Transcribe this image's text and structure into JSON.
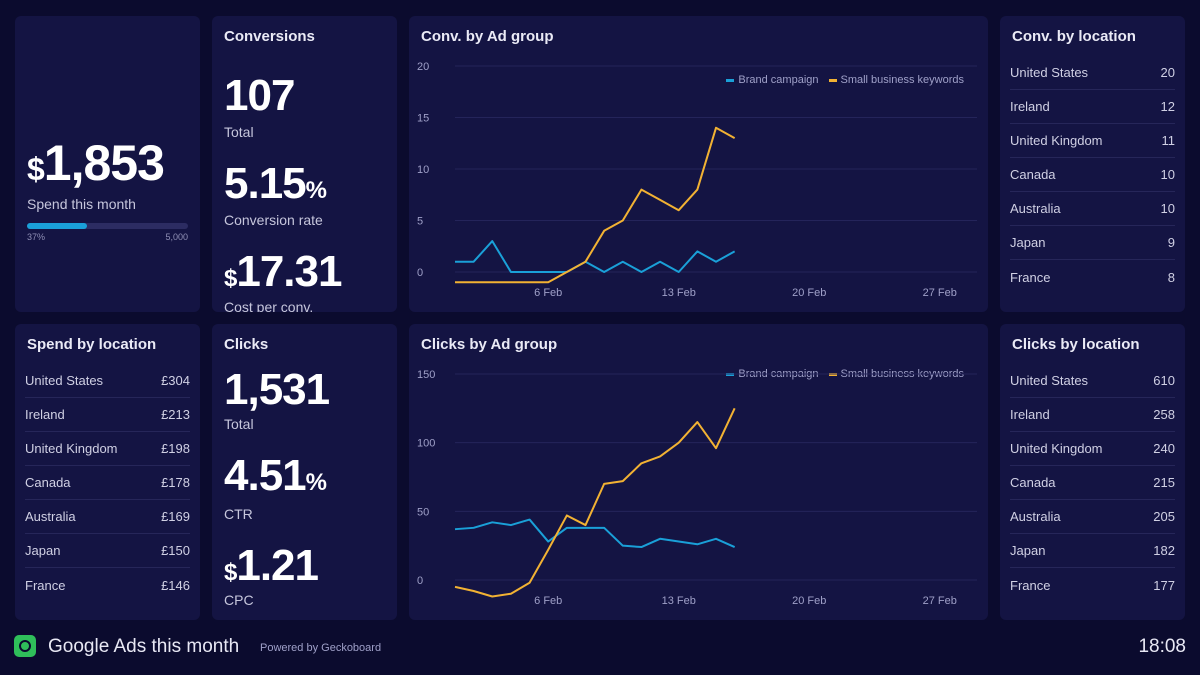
{
  "spend": {
    "currency": "$",
    "value": "1,853",
    "label": "Spend this month",
    "progress_fraction": 0.37,
    "progress_left": "37%",
    "progress_right": "5,000"
  },
  "conversions": {
    "title": "Conversions",
    "total_value": "107",
    "total_label": "Total",
    "rate_value": "5.15",
    "rate_unit": "%",
    "rate_label": "Conversion rate",
    "cpc_currency": "$",
    "cpc_value": "17.31",
    "cpc_label": "Cost per conv."
  },
  "clicks": {
    "title": "Clicks",
    "total_value": "1,531",
    "total_label": "Total",
    "ctr_value": "4.51",
    "ctr_unit": "%",
    "ctr_label": "CTR",
    "cpc_currency": "$",
    "cpc_value": "1.21",
    "cpc_label": "CPC"
  },
  "conv_by_location": {
    "title": "Conv. by location",
    "rows": [
      {
        "name": "United States",
        "value": "20"
      },
      {
        "name": "Ireland",
        "value": "12"
      },
      {
        "name": "United Kingdom",
        "value": "11"
      },
      {
        "name": "Canada",
        "value": "10"
      },
      {
        "name": "Australia",
        "value": "10"
      },
      {
        "name": "Japan",
        "value": "9"
      },
      {
        "name": "France",
        "value": "8"
      }
    ]
  },
  "spend_by_location": {
    "title": "Spend by location",
    "rows": [
      {
        "name": "United States",
        "value": "£304"
      },
      {
        "name": "Ireland",
        "value": "£213"
      },
      {
        "name": "United Kingdom",
        "value": "£198"
      },
      {
        "name": "Canada",
        "value": "£178"
      },
      {
        "name": "Australia",
        "value": "£169"
      },
      {
        "name": "Japan",
        "value": "£150"
      },
      {
        "name": "France",
        "value": "£146"
      }
    ]
  },
  "clicks_by_location": {
    "title": "Clicks by location",
    "rows": [
      {
        "name": "United States",
        "value": "610"
      },
      {
        "name": "Ireland",
        "value": "258"
      },
      {
        "name": "United Kingdom",
        "value": "240"
      },
      {
        "name": "Canada",
        "value": "215"
      },
      {
        "name": "Australia",
        "value": "205"
      },
      {
        "name": "Japan",
        "value": "182"
      },
      {
        "name": "France",
        "value": "177"
      }
    ]
  },
  "colors": {
    "brand": "#1aa0d8",
    "small_business": "#f2b233",
    "background": "#0b0b2e",
    "panel": "#141443",
    "logo": "#2fbf5a"
  },
  "chart_data": [
    {
      "type": "line",
      "title": "Conv. by Ad group",
      "x_ticks": [
        "6 Feb",
        "13 Feb",
        "20 Feb",
        "27 Feb"
      ],
      "x_range": [
        1,
        29
      ],
      "ylim": [
        0,
        20
      ],
      "y_ticks": [
        0,
        5,
        10,
        15,
        20
      ],
      "grid": true,
      "legend_position": "top-right",
      "series": [
        {
          "name": "Brand campaign",
          "color": "#1aa0d8",
          "x": [
            1,
            2,
            3,
            4,
            5,
            6,
            7,
            8,
            9,
            10,
            11,
            12,
            13,
            14,
            15,
            16
          ],
          "values": [
            1,
            1,
            3,
            0,
            0,
            0,
            0,
            1,
            0,
            1,
            0,
            1,
            0,
            2,
            1,
            2
          ]
        },
        {
          "name": "Small business keywords",
          "color": "#f2b233",
          "x": [
            1,
            2,
            3,
            4,
            5,
            6,
            7,
            8,
            9,
            10,
            11,
            12,
            13,
            14,
            15,
            16
          ],
          "values": [
            -1,
            -1,
            -1,
            -1,
            -1,
            -1,
            0,
            1,
            4,
            5,
            8,
            7,
            6,
            8,
            14,
            13
          ]
        }
      ]
    },
    {
      "type": "line",
      "title": "Clicks by Ad group",
      "x_ticks": [
        "6 Feb",
        "13 Feb",
        "20 Feb",
        "27 Feb"
      ],
      "x_range": [
        1,
        29
      ],
      "ylim": [
        0,
        150
      ],
      "y_ticks": [
        0,
        50,
        100,
        150
      ],
      "grid": true,
      "legend_position": "top-right",
      "series": [
        {
          "name": "Brand campaign",
          "color": "#1aa0d8",
          "x": [
            1,
            2,
            3,
            4,
            5,
            6,
            7,
            8,
            9,
            10,
            11,
            12,
            13,
            14,
            15,
            16
          ],
          "values": [
            37,
            38,
            42,
            40,
            44,
            28,
            38,
            38,
            38,
            25,
            24,
            30,
            28,
            26,
            30,
            24
          ]
        },
        {
          "name": "Small business keywords",
          "color": "#f2b233",
          "x": [
            1,
            2,
            3,
            4,
            5,
            6,
            7,
            8,
            9,
            10,
            11,
            12,
            13,
            14,
            15,
            16
          ],
          "values": [
            -5,
            -8,
            -12,
            -10,
            -2,
            22,
            47,
            40,
            70,
            72,
            85,
            90,
            100,
            115,
            96,
            125
          ]
        }
      ]
    }
  ],
  "footer": {
    "title": "Google Ads this month",
    "powered": "Powered by Geckoboard",
    "time": "18:08"
  }
}
